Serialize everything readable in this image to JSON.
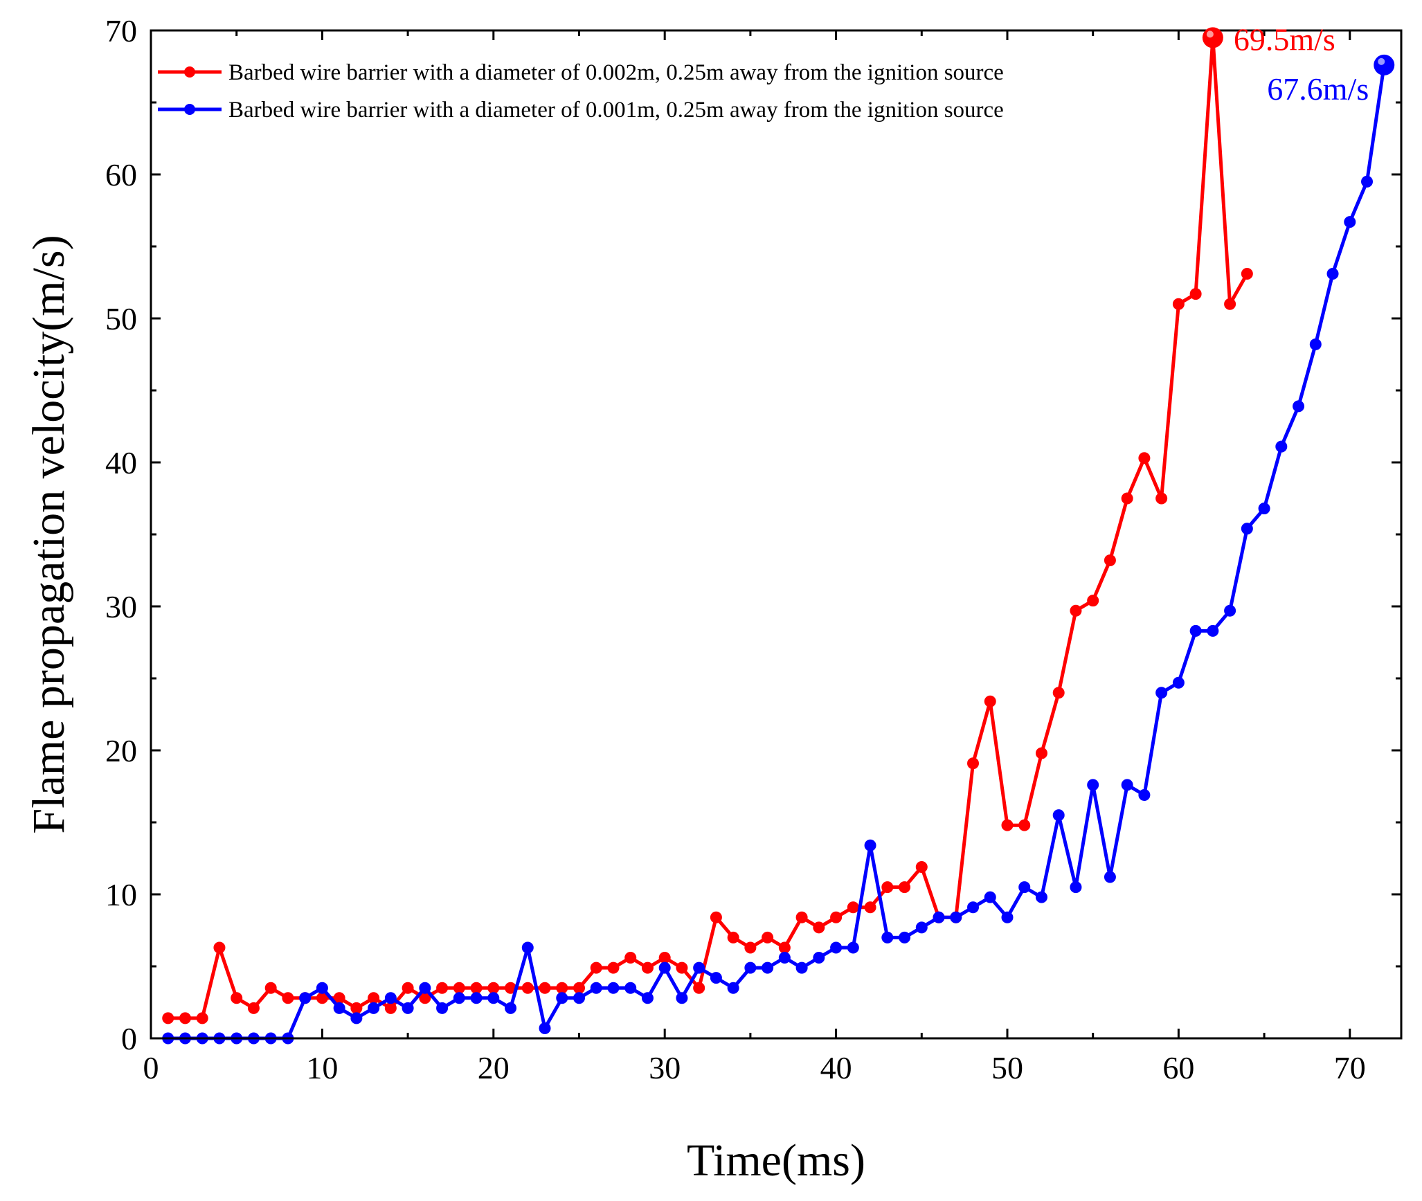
{
  "chart_data": {
    "type": "line",
    "title": "",
    "xlabel": "Time(ms)",
    "ylabel": "Flame propagation velocity(m/s)",
    "xlim": [
      0,
      73
    ],
    "ylim": [
      0,
      70
    ],
    "xticks": [
      0,
      10,
      20,
      30,
      40,
      50,
      60,
      70
    ],
    "yticks": [
      0,
      10,
      20,
      30,
      40,
      50,
      60,
      70
    ],
    "xtick_labels": [
      "0",
      "10",
      "20",
      "30",
      "40",
      "50",
      "60",
      "70"
    ],
    "ytick_labels": [
      "0",
      "10",
      "20",
      "30",
      "40",
      "50",
      "60",
      "70"
    ],
    "legend_position": "top-left",
    "series": [
      {
        "name": "Barbed wire barrier with a diameter of 0.002m, 0.25m away from the ignition source",
        "color": "#ff0000",
        "x": [
          1,
          2,
          3,
          4,
          5,
          6,
          7,
          8,
          9,
          10,
          11,
          12,
          13,
          14,
          15,
          16,
          17,
          18,
          19,
          20,
          21,
          22,
          23,
          24,
          25,
          26,
          27,
          28,
          29,
          30,
          31,
          32,
          33,
          34,
          35,
          36,
          37,
          38,
          39,
          40,
          41,
          42,
          43,
          44,
          45,
          46,
          47,
          48,
          49,
          50,
          51,
          52,
          53,
          54,
          55,
          56,
          57,
          58,
          59,
          60,
          61,
          62,
          63,
          64
        ],
        "values": [
          1.4,
          1.4,
          1.4,
          6.3,
          2.8,
          2.1,
          3.5,
          2.8,
          2.8,
          2.8,
          2.8,
          2.1,
          2.8,
          2.1,
          3.5,
          2.8,
          3.5,
          3.5,
          3.5,
          3.5,
          3.5,
          3.5,
          3.5,
          3.5,
          3.5,
          4.9,
          4.9,
          5.6,
          4.9,
          5.6,
          4.9,
          3.5,
          8.4,
          7.0,
          6.3,
          7.0,
          6.3,
          8.4,
          7.7,
          8.4,
          9.1,
          9.1,
          10.5,
          10.5,
          11.9,
          8.4,
          8.4,
          19.1,
          23.4,
          14.8,
          14.8,
          19.8,
          24.0,
          29.7,
          30.4,
          33.2,
          37.5,
          40.3,
          37.5,
          51.0,
          51.7,
          69.5,
          51.0,
          53.1
        ]
      },
      {
        "name": "Barbed wire barrier with a diameter of 0.001m, 0.25m away from the ignition source",
        "color": "#0000ff",
        "x": [
          1,
          2,
          3,
          4,
          5,
          6,
          7,
          8,
          9,
          10,
          11,
          12,
          13,
          14,
          15,
          16,
          17,
          18,
          19,
          20,
          21,
          22,
          23,
          24,
          25,
          26,
          27,
          28,
          29,
          30,
          31,
          32,
          33,
          34,
          35,
          36,
          37,
          38,
          39,
          40,
          41,
          42,
          43,
          44,
          45,
          46,
          47,
          48,
          49,
          50,
          51,
          52,
          53,
          54,
          55,
          56,
          57,
          58,
          59,
          60,
          61,
          62,
          63,
          64,
          65,
          66,
          67,
          68,
          69,
          70,
          71,
          72
        ],
        "values": [
          0,
          0,
          0,
          0,
          0,
          0,
          0,
          0,
          2.8,
          3.5,
          2.1,
          1.4,
          2.1,
          2.8,
          2.1,
          3.5,
          2.1,
          2.8,
          2.8,
          2.8,
          2.1,
          6.3,
          0.7,
          2.8,
          2.8,
          3.5,
          3.5,
          3.5,
          2.8,
          4.9,
          2.8,
          4.9,
          4.2,
          3.5,
          4.9,
          4.9,
          5.6,
          4.9,
          5.6,
          6.3,
          6.3,
          13.4,
          7.0,
          7.0,
          7.7,
          8.4,
          8.4,
          9.1,
          9.8,
          8.4,
          10.5,
          9.8,
          15.5,
          10.5,
          17.6,
          11.2,
          17.6,
          16.9,
          24.0,
          24.7,
          28.3,
          28.3,
          29.7,
          35.4,
          36.8,
          41.1,
          43.9,
          48.2,
          53.1,
          56.7,
          59.5,
          67.6
        ]
      }
    ],
    "annotations": [
      {
        "text": "69.5m/s",
        "x": 62,
        "y": 69.5,
        "color": "#ff0000"
      },
      {
        "text": "67.6m/s",
        "x": 72,
        "y": 67.6,
        "color": "#0000ff"
      }
    ]
  }
}
